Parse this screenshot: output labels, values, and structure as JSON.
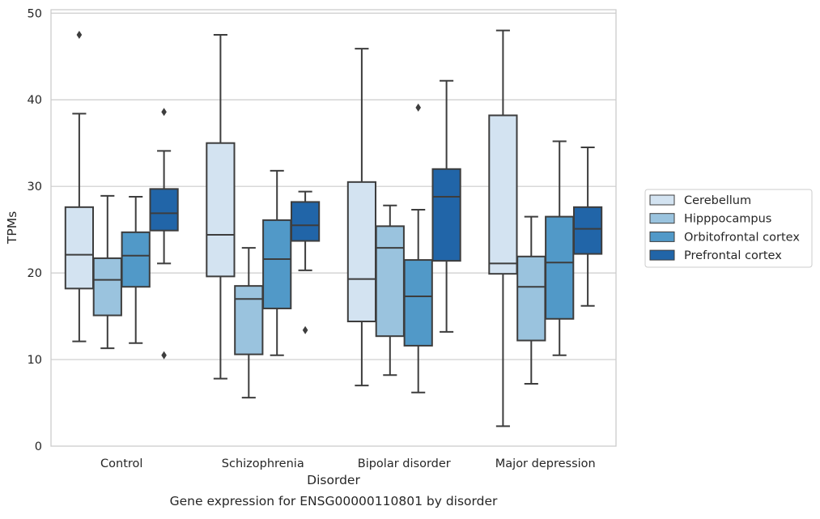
{
  "chart_data": {
    "type": "box",
    "title": "",
    "caption": "Gene expression for ENSG00000110801 by disorder",
    "xlabel": "Disorder",
    "ylabel": "TPMs",
    "ylim": [
      0,
      50.4
    ],
    "yticks": [
      0,
      10,
      20,
      30,
      40,
      50
    ],
    "grid": "horizontal",
    "legend_position": "right",
    "categories": [
      "Control",
      "Schizophrenia",
      "Bipolar disorder",
      "Major depression"
    ],
    "series": [
      {
        "name": "Cerebellum",
        "color": "#d3e3f1",
        "boxes": [
          {
            "whisker_low": 12.1,
            "q1": 18.2,
            "median": 22.1,
            "q3": 27.6,
            "whisker_high": 38.4,
            "outliers": [
              47.5
            ]
          },
          {
            "whisker_low": 7.8,
            "q1": 19.6,
            "median": 24.4,
            "q3": 35.0,
            "whisker_high": 47.5,
            "outliers": []
          },
          {
            "whisker_low": 7.0,
            "q1": 14.4,
            "median": 19.3,
            "q3": 30.5,
            "whisker_high": 45.9,
            "outliers": []
          },
          {
            "whisker_low": 2.3,
            "q1": 19.9,
            "median": 21.1,
            "q3": 38.2,
            "whisker_high": 48.0,
            "outliers": []
          }
        ]
      },
      {
        "name": "Hipppocampus",
        "color": "#9ac3de",
        "boxes": [
          {
            "whisker_low": 11.3,
            "q1": 15.1,
            "median": 19.2,
            "q3": 21.7,
            "whisker_high": 28.9,
            "outliers": []
          },
          {
            "whisker_low": 5.6,
            "q1": 10.6,
            "median": 17.0,
            "q3": 18.5,
            "whisker_high": 22.9,
            "outliers": []
          },
          {
            "whisker_low": 8.2,
            "q1": 12.7,
            "median": 22.9,
            "q3": 25.4,
            "whisker_high": 27.8,
            "outliers": []
          },
          {
            "whisker_low": 7.2,
            "q1": 12.2,
            "median": 18.4,
            "q3": 21.9,
            "whisker_high": 26.5,
            "outliers": []
          }
        ]
      },
      {
        "name": "Orbitofrontal cortex",
        "color": "#5199c8",
        "boxes": [
          {
            "whisker_low": 11.9,
            "q1": 18.4,
            "median": 22.0,
            "q3": 24.7,
            "whisker_high": 28.8,
            "outliers": []
          },
          {
            "whisker_low": 10.5,
            "q1": 15.9,
            "median": 21.6,
            "q3": 26.1,
            "whisker_high": 31.8,
            "outliers": []
          },
          {
            "whisker_low": 6.2,
            "q1": 11.6,
            "median": 17.3,
            "q3": 21.5,
            "whisker_high": 27.3,
            "outliers": [
              39.1
            ]
          },
          {
            "whisker_low": 10.5,
            "q1": 14.7,
            "median": 21.2,
            "q3": 26.5,
            "whisker_high": 35.2,
            "outliers": []
          }
        ]
      },
      {
        "name": "Prefrontal cortex",
        "color": "#2165a8",
        "boxes": [
          {
            "whisker_low": 21.1,
            "q1": 24.9,
            "median": 26.9,
            "q3": 29.7,
            "whisker_high": 34.1,
            "outliers": [
              38.6,
              10.5
            ]
          },
          {
            "whisker_low": 20.3,
            "q1": 23.7,
            "median": 25.5,
            "q3": 28.2,
            "whisker_high": 29.4,
            "outliers": [
              13.4
            ]
          },
          {
            "whisker_low": 13.2,
            "q1": 21.4,
            "median": 28.8,
            "q3": 32.0,
            "whisker_high": 42.2,
            "outliers": []
          },
          {
            "whisker_low": 16.2,
            "q1": 22.2,
            "median": 25.1,
            "q3": 27.6,
            "whisker_high": 34.5,
            "outliers": []
          }
        ]
      }
    ]
  }
}
